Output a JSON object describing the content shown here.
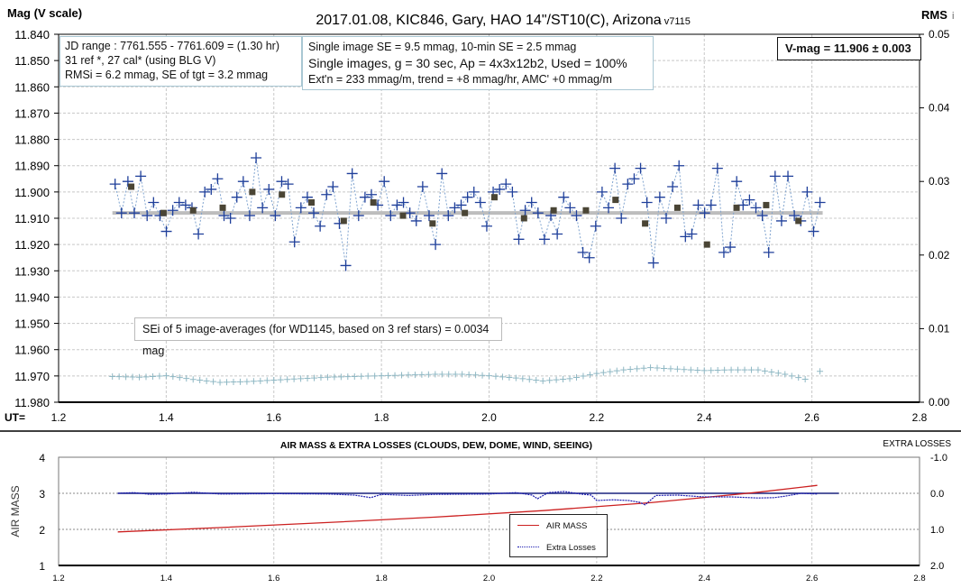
{
  "chart_data": [
    {
      "type": "scatter",
      "title": "2017.01.08, KIC846, Gary, HAO 14\"/ST10(C), Arizona",
      "version": "- v7115",
      "ylabel": "Mag (V scale)",
      "y2label": "RMS",
      "y2label_suffix": "i",
      "xlabel": "UT=",
      "xlim": [
        1.2,
        2.8
      ],
      "ylim": [
        11.84,
        11.98
      ],
      "y2lim": [
        0,
        0.05
      ],
      "xticks": [
        "1.2",
        "1.4",
        "1.6",
        "1.8",
        "2.0",
        "2.2",
        "2.4",
        "2.6",
        "2.8"
      ],
      "yticks": [
        "11.840",
        "11.850",
        "11.860",
        "11.870",
        "11.880",
        "11.890",
        "11.900",
        "11.910",
        "11.920",
        "11.930",
        "11.940",
        "11.950",
        "11.960",
        "11.970",
        "11.980"
      ],
      "y2ticks": [
        "0.05",
        "0.04",
        "0.03",
        "0.02",
        "0.01",
        "0.00"
      ],
      "grid": true,
      "series": [
        {
          "name": "Single images",
          "x_start": 1.305,
          "x_end": 2.615,
          "color": "#1f3f9a",
          "values": [
            11.897,
            11.908,
            11.896,
            11.908,
            11.894,
            11.909,
            11.904,
            11.909,
            11.915,
            11.907,
            11.904,
            11.905,
            11.906,
            11.916,
            11.9,
            11.899,
            11.895,
            11.909,
            11.91,
            11.902,
            11.896,
            11.909,
            11.887,
            11.906,
            11.899,
            11.909,
            11.896,
            11.897,
            11.919,
            11.906,
            11.902,
            11.908,
            11.913,
            11.901,
            11.898,
            11.912,
            11.928,
            11.893,
            11.909,
            11.902,
            11.901,
            11.905,
            11.896,
            11.909,
            11.905,
            11.904,
            11.908,
            11.911,
            11.898,
            11.909,
            11.92,
            11.893,
            11.909,
            11.906,
            11.905,
            11.902,
            11.9,
            11.904,
            11.913,
            11.9,
            11.899,
            11.897,
            11.9,
            11.918,
            11.907,
            11.904,
            11.908,
            11.918,
            11.909,
            11.916,
            11.902,
            11.906,
            11.909,
            11.923,
            11.925,
            11.913,
            11.9,
            11.906,
            11.891,
            11.91,
            11.897,
            11.895,
            11.891,
            11.904,
            11.927,
            11.902,
            11.91,
            11.898,
            11.89,
            11.917,
            11.916,
            11.905,
            11.908,
            11.905,
            11.891,
            11.923,
            11.921,
            11.896,
            11.905,
            11.903,
            11.906,
            11.909,
            11.923,
            11.894,
            11.911,
            11.894,
            11.909,
            11.911,
            11.9,
            11.915,
            11.904
          ]
        },
        {
          "name": "5-image averages",
          "color": "#4a4535",
          "x": [
            1.335,
            1.395,
            1.45,
            1.505,
            1.56,
            1.615,
            1.67,
            1.73,
            1.785,
            1.84,
            1.895,
            1.955,
            2.01,
            2.065,
            2.12,
            2.18,
            2.235,
            2.29,
            2.35,
            2.405,
            2.46,
            2.515,
            2.575
          ],
          "values": [
            11.898,
            11.908,
            11.907,
            11.906,
            11.9,
            11.901,
            11.904,
            11.911,
            11.904,
            11.909,
            11.912,
            11.908,
            11.902,
            11.91,
            11.907,
            11.907,
            11.903,
            11.912,
            11.906,
            11.92,
            11.906,
            11.905,
            11.911
          ]
        },
        {
          "name": "Mean",
          "color": "#bdbdbd",
          "x": [
            1.3,
            2.62
          ],
          "values": [
            11.908,
            11.908
          ]
        },
        {
          "name": "RMSi",
          "axis": "right",
          "color": "#8fb8c4",
          "x": [
            1.3,
            1.35,
            1.4,
            1.45,
            1.5,
            1.55,
            1.6,
            1.65,
            1.7,
            1.75,
            1.8,
            1.85,
            1.9,
            1.95,
            2.0,
            2.05,
            2.1,
            2.15,
            2.2,
            2.25,
            2.3,
            2.35,
            2.4,
            2.45,
            2.5,
            2.55,
            2.6
          ],
          "values": [
            0.0035,
            0.0034,
            0.0036,
            0.0031,
            0.0027,
            0.0028,
            0.003,
            0.0032,
            0.0034,
            0.0035,
            0.0036,
            0.0037,
            0.0038,
            0.0038,
            0.0036,
            0.0033,
            0.0029,
            0.0032,
            0.0039,
            0.0044,
            0.0047,
            0.0045,
            0.0043,
            0.0044,
            0.0044,
            0.0038,
            0.0029
          ],
          "last_point": {
            "x": 2.615,
            "value": 0.0042
          }
        }
      ],
      "annotations": {
        "info1": [
          "JD range  : 7761.555 - 7761.609  = (1.30 hr)",
          "31 ref *, 27 cal* (using BLG V)",
          "RMSi = 6.2 mmag, SE of tgt = 3.2 mmag"
        ],
        "info2": [
          "Single image SE = 9.5 mmag, 10-min SE = 2.5 mmag",
          "Single images, g = 30 sec, Ap = 4x3x12b2, Used = 100%",
          "Ext'n = 233  mmag/m, trend = +8 mmag/hr, AMC' +0 mmag/m"
        ],
        "vmag": "V-mag  = 11.906 ± 0.003",
        "sei": "SEi of 5 image-averages (for WD1145, based on 3 ref stars) = 0.0034 mag"
      }
    },
    {
      "type": "line",
      "title": "AIR MASS & EXTRA LOSSES (CLOUDS, DEW, DOME, WIND, SEEING)",
      "ylabel": "AIR MASS",
      "y2label": "EXTRA LOSSES",
      "xlim": [
        1.2,
        2.8
      ],
      "ylim": [
        1,
        4
      ],
      "y2lim": [
        2.0,
        -1.0
      ],
      "xticks": [
        "1.2",
        "1.4",
        "1.6",
        "1.8",
        "2.0",
        "2.2",
        "2.4",
        "2.6",
        "2.8"
      ],
      "yticks": [
        "4",
        "3",
        "2",
        "1"
      ],
      "y2ticks": [
        "-1.0",
        "0.0",
        "1.0",
        "2.0"
      ],
      "legend": {
        "placement": "center",
        "entries": [
          "AIR MASS",
          "Extra Losses"
        ]
      },
      "series": [
        {
          "name": "AIR MASS",
          "color": "#cc2020",
          "x": [
            1.31,
            1.5,
            1.7,
            1.9,
            2.1,
            2.3,
            2.5,
            2.61
          ],
          "values": [
            1.93,
            2.05,
            2.19,
            2.34,
            2.52,
            2.74,
            3.03,
            3.22
          ]
        },
        {
          "name": "Extra Losses",
          "axis": "right",
          "color": "#1a1ab0",
          "x": [
            1.31,
            1.34,
            1.37,
            1.4,
            1.45,
            1.5,
            1.6,
            1.7,
            1.75,
            1.78,
            1.8,
            1.85,
            1.9,
            2.0,
            2.05,
            2.08,
            2.09,
            2.11,
            2.14,
            2.17,
            2.19,
            2.2,
            2.23,
            2.26,
            2.28,
            2.29,
            2.31,
            2.35,
            2.4,
            2.45,
            2.5,
            2.53,
            2.55,
            2.58,
            2.61
          ],
          "values": [
            0.0,
            -0.02,
            0.03,
            0.02,
            -0.03,
            0.02,
            0.01,
            0.02,
            0.05,
            0.12,
            0.03,
            0.06,
            0.03,
            0.02,
            -0.02,
            0.05,
            0.15,
            -0.02,
            -0.05,
            0.02,
            0.05,
            0.2,
            0.18,
            0.2,
            0.25,
            0.32,
            0.06,
            0.05,
            0.1,
            0.1,
            0.13,
            0.12,
            0.08,
            0.0,
            0.02
          ]
        },
        {
          "name": "Baseline",
          "color": "#1a237e",
          "x": [
            1.31,
            2.65
          ],
          "values": [
            0,
            0
          ]
        }
      ]
    }
  ]
}
